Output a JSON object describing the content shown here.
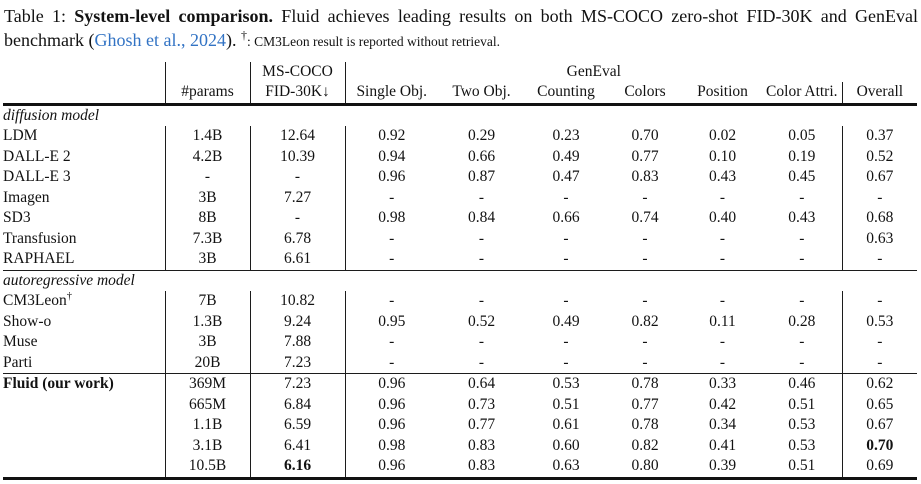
{
  "caption": {
    "prefix": "Table 1: ",
    "title_bold": "System-level comparison.",
    "body": " Fluid achieves leading results on both MS-COCO zero-shot FID-30K and GenEval benchmark (",
    "citation": "Ghosh et al., 2024",
    "after_citation": "). ",
    "dagger": "†",
    "footnote": ": CM3Leon result is reported without retrieval."
  },
  "colors": {
    "citation_link": "#3273c4",
    "text": "#121212",
    "background": "#ffffff"
  },
  "table": {
    "header": {
      "group_mscoco": "MS-COCO",
      "group_geneval": "GenEval",
      "col_params": "#params",
      "col_fid": "FID-30K↓",
      "col_single": "Single Obj.",
      "col_two": "Two Obj.",
      "col_counting": "Counting",
      "col_colors": "Colors",
      "col_position": "Position",
      "col_color_attri": "Color Attri.",
      "col_overall": "Overall"
    },
    "sections": [
      {
        "id": "diffusion",
        "label": "diffusion model",
        "rule_top": false,
        "rows": [
          {
            "name": "LDM",
            "params": "1.4B",
            "fid": "12.64",
            "vals": [
              "0.92",
              "0.29",
              "0.23",
              "0.70",
              "0.02",
              "0.05"
            ],
            "overall": "0.37"
          },
          {
            "name": "DALL-E 2",
            "params": "4.2B",
            "fid": "10.39",
            "vals": [
              "0.94",
              "0.66",
              "0.49",
              "0.77",
              "0.10",
              "0.19"
            ],
            "overall": "0.52"
          },
          {
            "name": "DALL-E 3",
            "params": "-",
            "fid": "-",
            "vals": [
              "0.96",
              "0.87",
              "0.47",
              "0.83",
              "0.43",
              "0.45"
            ],
            "overall": "0.67"
          },
          {
            "name": "Imagen",
            "params": "3B",
            "fid": "7.27",
            "vals": [
              "-",
              "-",
              "-",
              "-",
              "-",
              "-"
            ],
            "overall": "-"
          },
          {
            "name": "SD3",
            "params": "8B",
            "fid": "-",
            "vals": [
              "0.98",
              "0.84",
              "0.66",
              "0.74",
              "0.40",
              "0.43"
            ],
            "overall": "0.68"
          },
          {
            "name": "Transfusion",
            "params": "7.3B",
            "fid": "6.78",
            "vals": [
              "-",
              "-",
              "-",
              "-",
              "-",
              "-"
            ],
            "overall": "0.63"
          },
          {
            "name": "RAPHAEL",
            "params": "3B",
            "fid": "6.61",
            "vals": [
              "-",
              "-",
              "-",
              "-",
              "-",
              "-"
            ],
            "overall": "-"
          }
        ]
      },
      {
        "id": "autoregressive",
        "label": "autoregressive model",
        "rule_top": true,
        "rows": [
          {
            "name": "CM3Leon",
            "sup": "†",
            "params": "7B",
            "fid": "10.82",
            "vals": [
              "-",
              "-",
              "-",
              "-",
              "-",
              "-"
            ],
            "overall": "-"
          },
          {
            "name": "Show-o",
            "params": "1.3B",
            "fid": "9.24",
            "vals": [
              "0.95",
              "0.52",
              "0.49",
              "0.82",
              "0.11",
              "0.28"
            ],
            "overall": "0.53"
          },
          {
            "name": "Muse",
            "params": "3B",
            "fid": "7.88",
            "vals": [
              "-",
              "-",
              "-",
              "-",
              "-",
              "-"
            ],
            "overall": "-"
          },
          {
            "name": "Parti",
            "params": "20B",
            "fid": "7.23",
            "vals": [
              "-",
              "-",
              "-",
              "-",
              "-",
              "-"
            ],
            "overall": "-"
          },
          {
            "name": "Fluid (our work)",
            "name_bold": true,
            "rule_top": true,
            "params": "369M",
            "fid": "7.23",
            "vals": [
              "0.96",
              "0.64",
              "0.53",
              "0.78",
              "0.33",
              "0.46"
            ],
            "overall": "0.62"
          },
          {
            "name": "",
            "params": "665M",
            "fid": "6.84",
            "vals": [
              "0.96",
              "0.73",
              "0.51",
              "0.77",
              "0.42",
              "0.51"
            ],
            "overall": "0.65"
          },
          {
            "name": "",
            "params": "1.1B",
            "fid": "6.59",
            "vals": [
              "0.96",
              "0.77",
              "0.61",
              "0.78",
              "0.34",
              "0.53"
            ],
            "overall": "0.67"
          },
          {
            "name": "",
            "params": "3.1B",
            "fid": "6.41",
            "vals": [
              "0.98",
              "0.83",
              "0.60",
              "0.82",
              "0.41",
              "0.53"
            ],
            "overall": "0.70",
            "overall_bold": true
          },
          {
            "name": "",
            "params": "10.5B",
            "fid": "6.16",
            "fid_bold": true,
            "vals": [
              "0.96",
              "0.83",
              "0.63",
              "0.80",
              "0.39",
              "0.51"
            ],
            "overall": "0.69"
          }
        ]
      }
    ]
  }
}
